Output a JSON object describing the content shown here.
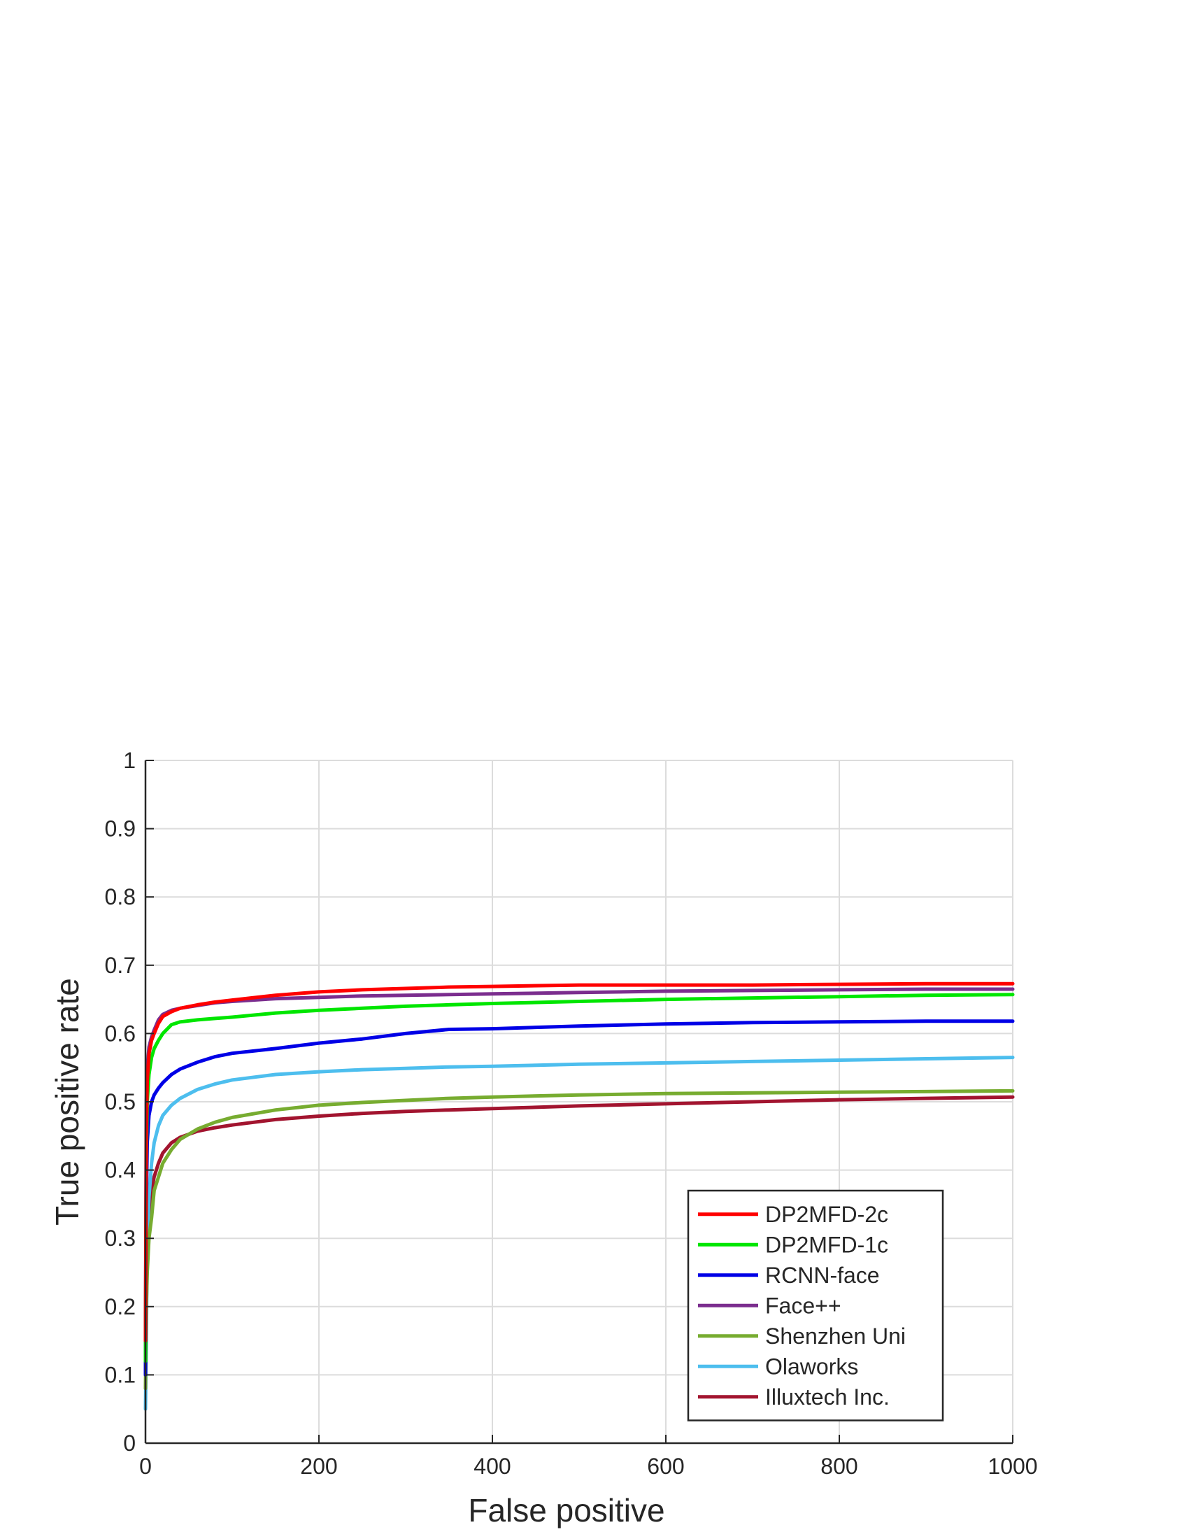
{
  "chart_data": {
    "type": "line",
    "title": "",
    "xlabel": "False positive",
    "ylabel": "True positive rate",
    "xlim": [
      0,
      1000
    ],
    "ylim": [
      0,
      1
    ],
    "xticks": [
      0,
      200,
      400,
      600,
      800,
      1000
    ],
    "xtick_labels": [
      "0",
      "200",
      "400",
      "600",
      "800",
      "1000"
    ],
    "yticks": [
      0,
      0.1,
      0.2,
      0.3,
      0.4,
      0.5,
      0.6,
      0.7,
      0.8,
      0.9,
      1
    ],
    "ytick_labels": [
      "0",
      "0.1",
      "0.2",
      "0.3",
      "0.4",
      "0.5",
      "0.6",
      "0.7",
      "0.8",
      "0.9",
      "1"
    ],
    "grid": true,
    "legend_position": "bottom-right",
    "series": [
      {
        "name": "DP2MFD-2c",
        "color": "#ff0000",
        "x": [
          0,
          1,
          2,
          4,
          7,
          10,
          15,
          20,
          30,
          40,
          60,
          80,
          100,
          150,
          200,
          250,
          300,
          350,
          400,
          500,
          600,
          700,
          800,
          900,
          1000
        ],
        "y": [
          0.15,
          0.45,
          0.53,
          0.57,
          0.59,
          0.6,
          0.615,
          0.625,
          0.632,
          0.637,
          0.642,
          0.646,
          0.649,
          0.656,
          0.661,
          0.664,
          0.666,
          0.668,
          0.669,
          0.671,
          0.671,
          0.671,
          0.672,
          0.673,
          0.673
        ]
      },
      {
        "name": "DP2MFD-1c",
        "color": "#00e600",
        "x": [
          0,
          1,
          2,
          4,
          7,
          10,
          15,
          20,
          30,
          40,
          60,
          80,
          100,
          150,
          200,
          250,
          300,
          350,
          400,
          500,
          600,
          700,
          800,
          900,
          1000
        ],
        "y": [
          0.12,
          0.42,
          0.5,
          0.54,
          0.565,
          0.578,
          0.59,
          0.6,
          0.613,
          0.617,
          0.62,
          0.622,
          0.624,
          0.63,
          0.634,
          0.637,
          0.64,
          0.642,
          0.644,
          0.647,
          0.65,
          0.652,
          0.654,
          0.656,
          0.657
        ]
      },
      {
        "name": "RCNN-face",
        "color": "#0000e6",
        "x": [
          0,
          1,
          2,
          4,
          7,
          10,
          15,
          20,
          30,
          40,
          60,
          80,
          100,
          150,
          200,
          250,
          300,
          350,
          400,
          500,
          600,
          700,
          800,
          900,
          1000
        ],
        "y": [
          0.1,
          0.35,
          0.44,
          0.48,
          0.5,
          0.51,
          0.52,
          0.528,
          0.54,
          0.548,
          0.558,
          0.566,
          0.571,
          0.578,
          0.586,
          0.592,
          0.6,
          0.606,
          0.607,
          0.611,
          0.614,
          0.616,
          0.617,
          0.618,
          0.618
        ]
      },
      {
        "name": "Face++",
        "color": "#7b2d8e",
        "x": [
          0,
          1,
          2,
          4,
          7,
          10,
          15,
          20,
          30,
          40,
          60,
          80,
          100,
          150,
          200,
          250,
          300,
          350,
          400,
          500,
          600,
          700,
          800,
          900,
          1000
        ],
        "y": [
          0.15,
          0.5,
          0.55,
          0.58,
          0.595,
          0.605,
          0.62,
          0.628,
          0.634,
          0.637,
          0.641,
          0.645,
          0.647,
          0.651,
          0.653,
          0.655,
          0.656,
          0.657,
          0.658,
          0.66,
          0.662,
          0.663,
          0.664,
          0.665,
          0.665
        ]
      },
      {
        "name": "Shenzhen Uni",
        "color": "#77ac30",
        "x": [
          0,
          1,
          2,
          4,
          7,
          10,
          15,
          20,
          30,
          40,
          60,
          80,
          100,
          150,
          200,
          250,
          300,
          350,
          400,
          500,
          600,
          700,
          800,
          900,
          1000
        ],
        "y": [
          0.08,
          0.2,
          0.25,
          0.3,
          0.33,
          0.37,
          0.39,
          0.41,
          0.43,
          0.445,
          0.46,
          0.47,
          0.477,
          0.488,
          0.495,
          0.499,
          0.502,
          0.505,
          0.507,
          0.51,
          0.512,
          0.513,
          0.514,
          0.515,
          0.516
        ]
      },
      {
        "name": "Olaworks",
        "color": "#4dbeee",
        "x": [
          0,
          1,
          2,
          4,
          7,
          10,
          15,
          20,
          30,
          40,
          60,
          80,
          100,
          150,
          200,
          250,
          300,
          350,
          400,
          500,
          600,
          700,
          800,
          900,
          1000
        ],
        "y": [
          0.05,
          0.15,
          0.3,
          0.36,
          0.41,
          0.44,
          0.465,
          0.48,
          0.495,
          0.505,
          0.518,
          0.526,
          0.532,
          0.54,
          0.544,
          0.547,
          0.549,
          0.551,
          0.552,
          0.555,
          0.557,
          0.559,
          0.561,
          0.563,
          0.565
        ]
      },
      {
        "name": "Illuxtech Inc.",
        "color": "#a2142f",
        "x": [
          0,
          1,
          2,
          4,
          7,
          10,
          15,
          20,
          30,
          40,
          60,
          80,
          100,
          150,
          200,
          250,
          300,
          350,
          400,
          500,
          600,
          700,
          800,
          900,
          1000
        ],
        "y": [
          0.1,
          0.25,
          0.3,
          0.34,
          0.37,
          0.39,
          0.41,
          0.425,
          0.44,
          0.448,
          0.457,
          0.462,
          0.466,
          0.474,
          0.479,
          0.483,
          0.486,
          0.488,
          0.49,
          0.494,
          0.497,
          0.5,
          0.503,
          0.505,
          0.507
        ]
      }
    ]
  }
}
